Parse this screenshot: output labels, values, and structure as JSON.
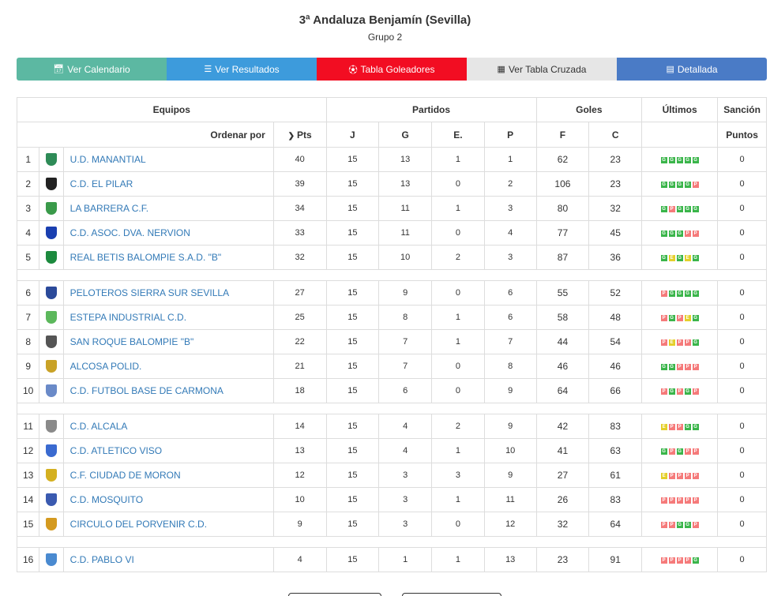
{
  "page": {
    "title": "3ª Andaluza Benjamín (Sevilla)",
    "subtitle": "Grupo 2"
  },
  "tabs": [
    {
      "label": "Ver Calendario",
      "icon": "calendar-icon"
    },
    {
      "label": "Ver Resultados",
      "icon": "list-icon"
    },
    {
      "label": "Tabla Goleadores",
      "icon": "soccer-ball-icon"
    },
    {
      "label": "Ver Tabla Cruzada",
      "icon": "table-grid-icon"
    },
    {
      "label": "Detallada",
      "icon": "list-alt-icon"
    }
  ],
  "headers": {
    "equipos": "Equipos",
    "partidos": "Partidos",
    "goles": "Goles",
    "ultimos": "Últimos",
    "sancion": "Sanción",
    "ordenar": "Ordenar por",
    "pts": "Pts",
    "j": "J",
    "g": "G",
    "e": "E.",
    "p": "P",
    "f": "F",
    "c": "C",
    "puntos": "Puntos"
  },
  "colors": {
    "win": "#3ab54a",
    "loss": "#f57a7a",
    "draw": "#e4cf2a",
    "link": "#337ab7"
  },
  "teams": [
    {
      "pos": "1",
      "name": "U.D. MANANTIAL",
      "pts": "40",
      "j": "15",
      "g": "13",
      "e": "1",
      "p": "1",
      "f": "62",
      "c": "23",
      "form": [
        "G",
        "G",
        "G",
        "G",
        "G"
      ],
      "sancion": "0",
      "shield": "#2e8b57"
    },
    {
      "pos": "2",
      "name": "C.D. EL PILAR",
      "pts": "39",
      "j": "15",
      "g": "13",
      "e": "0",
      "p": "2",
      "f": "106",
      "c": "23",
      "form": [
        "G",
        "G",
        "G",
        "G",
        "P"
      ],
      "sancion": "0",
      "shield": "#222222"
    },
    {
      "pos": "3",
      "name": "LA BARRERA C.F.",
      "pts": "34",
      "j": "15",
      "g": "11",
      "e": "1",
      "p": "3",
      "f": "80",
      "c": "32",
      "form": [
        "G",
        "P",
        "G",
        "G",
        "G"
      ],
      "sancion": "0",
      "shield": "#3a9a4a"
    },
    {
      "pos": "4",
      "name": "C.D. ASOC. DVA. NERVION",
      "pts": "33",
      "j": "15",
      "g": "11",
      "e": "0",
      "p": "4",
      "f": "77",
      "c": "45",
      "form": [
        "G",
        "G",
        "G",
        "P",
        "P"
      ],
      "sancion": "0",
      "shield": "#1a3fb0"
    },
    {
      "pos": "5",
      "name": "REAL BETIS BALOMPIE S.A.D. \"B\"",
      "pts": "32",
      "j": "15",
      "g": "10",
      "e": "2",
      "p": "3",
      "f": "87",
      "c": "36",
      "form": [
        "G",
        "E",
        "G",
        "E",
        "G"
      ],
      "sancion": "0",
      "shield": "#1c8a3e"
    },
    {
      "pos": "6",
      "name": "PELOTEROS SIERRA SUR SEVILLA",
      "pts": "27",
      "j": "15",
      "g": "9",
      "e": "0",
      "p": "6",
      "f": "55",
      "c": "52",
      "form": [
        "P",
        "G",
        "G",
        "G",
        "G"
      ],
      "sancion": "0",
      "shield": "#2b4a9a"
    },
    {
      "pos": "7",
      "name": "ESTEPA INDUSTRIAL C.D.",
      "pts": "25",
      "j": "15",
      "g": "8",
      "e": "1",
      "p": "6",
      "f": "58",
      "c": "48",
      "form": [
        "P",
        "G",
        "P",
        "E",
        "G"
      ],
      "sancion": "0",
      "shield": "#5cb85c"
    },
    {
      "pos": "8",
      "name": "SAN ROQUE BALOMPIE \"B\"",
      "pts": "22",
      "j": "15",
      "g": "7",
      "e": "1",
      "p": "7",
      "f": "44",
      "c": "54",
      "form": [
        "P",
        "E",
        "P",
        "P",
        "G"
      ],
      "sancion": "0",
      "shield": "#555555"
    },
    {
      "pos": "9",
      "name": "ALCOSA POLID.",
      "pts": "21",
      "j": "15",
      "g": "7",
      "e": "0",
      "p": "8",
      "f": "46",
      "c": "46",
      "form": [
        "G",
        "G",
        "P",
        "P",
        "P"
      ],
      "sancion": "0",
      "shield": "#c9a227"
    },
    {
      "pos": "10",
      "name": "C.D. FUTBOL BASE DE CARMONA",
      "pts": "18",
      "j": "15",
      "g": "6",
      "e": "0",
      "p": "9",
      "f": "64",
      "c": "66",
      "form": [
        "P",
        "G",
        "P",
        "G",
        "P"
      ],
      "sancion": "0",
      "shield": "#6a8ac8"
    },
    {
      "pos": "11",
      "name": "C.D. ALCALA",
      "pts": "14",
      "j": "15",
      "g": "4",
      "e": "2",
      "p": "9",
      "f": "42",
      "c": "83",
      "form": [
        "E",
        "P",
        "P",
        "G",
        "G"
      ],
      "sancion": "0",
      "shield": "#8a8a8a"
    },
    {
      "pos": "12",
      "name": "C.D. ATLETICO VISO",
      "pts": "13",
      "j": "15",
      "g": "4",
      "e": "1",
      "p": "10",
      "f": "41",
      "c": "63",
      "form": [
        "G",
        "P",
        "G",
        "P",
        "P"
      ],
      "sancion": "0",
      "shield": "#3a6ad0"
    },
    {
      "pos": "13",
      "name": "C.F. CIUDAD DE MORON",
      "pts": "12",
      "j": "15",
      "g": "3",
      "e": "3",
      "p": "9",
      "f": "27",
      "c": "61",
      "form": [
        "E",
        "P",
        "P",
        "P",
        "P"
      ],
      "sancion": "0",
      "shield": "#d4b020"
    },
    {
      "pos": "14",
      "name": "C.D. MOSQUITO",
      "pts": "10",
      "j": "15",
      "g": "3",
      "e": "1",
      "p": "11",
      "f": "26",
      "c": "83",
      "form": [
        "P",
        "P",
        "P",
        "P",
        "P"
      ],
      "sancion": "0",
      "shield": "#3a5ab0"
    },
    {
      "pos": "15",
      "name": "CIRCULO DEL PORVENIR C.D.",
      "pts": "9",
      "j": "15",
      "g": "3",
      "e": "0",
      "p": "12",
      "f": "32",
      "c": "64",
      "form": [
        "P",
        "P",
        "G",
        "G",
        "P"
      ],
      "sancion": "0",
      "shield": "#d49a20"
    },
    {
      "pos": "16",
      "name": "C.D. PABLO VI",
      "pts": "4",
      "j": "15",
      "g": "1",
      "e": "1",
      "p": "13",
      "f": "23",
      "c": "91",
      "form": [
        "P",
        "P",
        "P",
        "P",
        "G"
      ],
      "sancion": "0",
      "shield": "#4a8ad0"
    }
  ],
  "separator_after": [
    5,
    10,
    15
  ]
}
